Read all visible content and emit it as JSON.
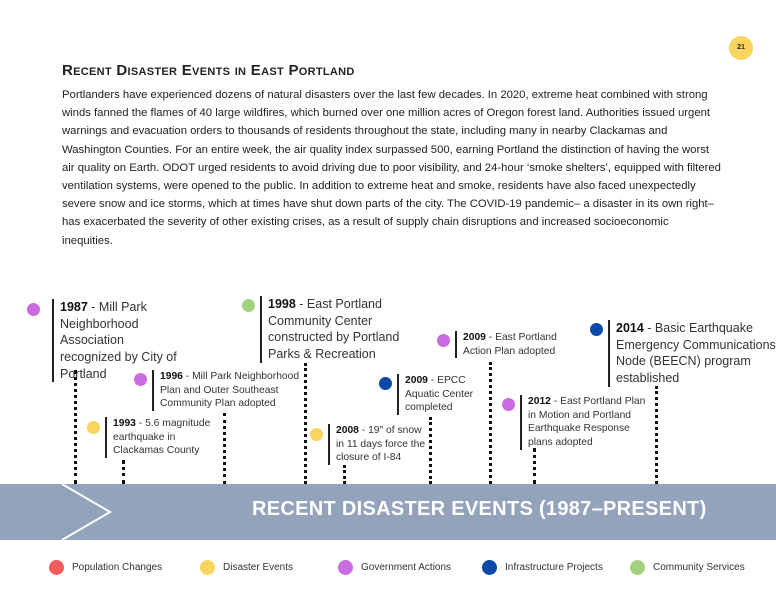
{
  "page_number": "21",
  "title": "Recent Disaster Events in East Portland",
  "intro": "Portlanders have experienced dozens of natural disasters over the last few decades. In 2020, extreme heat combined with strong winds fanned the flames of 40 large wildfires, which burned over one million acres of Oregon forest land. Authorities issued urgent warnings and evacuation orders to thousands of residents throughout the state, including many in nearby Clackamas and Washington Counties. For an entire week, the air quality index surpassed 500, earning Portland the distinction of having the worst air quality on Earth. ODOT urged residents to avoid driving due to poor visibility, and 24-hour ‘smoke shelters’, equipped with filtered ventilation systems, were opened to the public. In addition to extreme heat and smoke, residents have also faced unexpectedly severe snow and ice storms, which at times have shut down parts of the city. The COVID-19 pandemic– a disaster in its own right– has exacerbated the severity of other existing crises, as a result of supply chain disruptions and increased socioeconomic inequities.",
  "colors": {
    "population": "#f25c5c",
    "disaster": "#f9d55f",
    "government": "#c96ce0",
    "infrastructure": "#0b4aa8",
    "community": "#a3d17f",
    "banner": "#93a3bb"
  },
  "events": [
    {
      "year": "1987",
      "text": "Mill Park Neighborhood Association recognized by City of Portland",
      "category": "government"
    },
    {
      "year": "1993",
      "text": "5.6 magnitude earthquake in Clackamas County",
      "category": "disaster"
    },
    {
      "year": "1996",
      "text": "Mill Park Neighborhood Plan and Outer Southeast Community Plan adopted",
      "category": "government"
    },
    {
      "year": "1998",
      "text": "East Portland Community Center constructed by Portland Parks & Recreation",
      "category": "community"
    },
    {
      "year": "2008",
      "text": "19\" of snow in 11 days force the closure of I-84",
      "category": "disaster"
    },
    {
      "year": "2009",
      "text": "EPCC Aquatic Center completed",
      "category": "infrastructure"
    },
    {
      "year": "2009",
      "text": "East Portland Action Plan adopted",
      "category": "government"
    },
    {
      "year": "2012",
      "text": "East Portland Plan in Motion and Portland Earthquake Response plans adopted",
      "category": "government"
    },
    {
      "year": "2014",
      "text": "Basic Earthquake Emergency Communications Node (BEECN) program established",
      "category": "infrastructure"
    }
  ],
  "banner_title": "RECENT DISASTER EVENTS (1987–PRESENT)",
  "legend": [
    {
      "label": "Population Changes",
      "category": "population"
    },
    {
      "label": "Disaster Events",
      "category": "disaster"
    },
    {
      "label": "Government Actions",
      "category": "government"
    },
    {
      "label": "Infrastructure Projects",
      "category": "infrastructure"
    },
    {
      "label": "Community Services",
      "category": "community"
    }
  ]
}
